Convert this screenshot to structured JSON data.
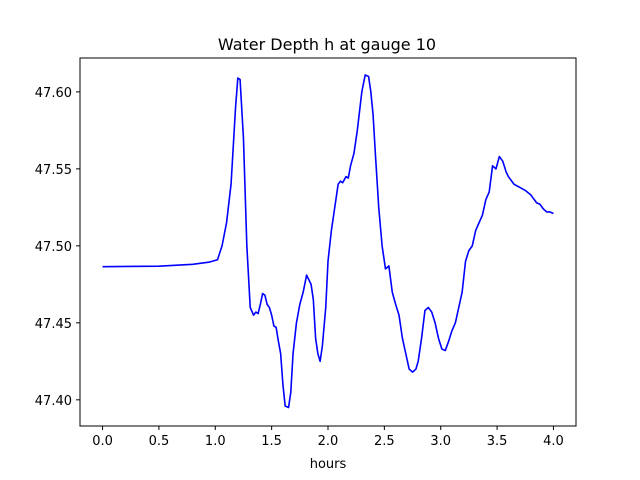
{
  "chart_data": {
    "type": "line",
    "title": "Water Depth h at gauge 10",
    "xlabel": "hours",
    "ylabel": "",
    "xlim": [
      -0.2,
      4.2
    ],
    "ylim": [
      47.383,
      47.622
    ],
    "xticks": [
      0.0,
      0.5,
      1.0,
      1.5,
      2.0,
      2.5,
      3.0,
      3.5,
      4.0
    ],
    "xtick_labels": [
      "0.0",
      "0.5",
      "1.0",
      "1.5",
      "2.0",
      "2.5",
      "3.0",
      "3.5",
      "4.0"
    ],
    "yticks": [
      47.4,
      47.45,
      47.5,
      47.55,
      47.6
    ],
    "ytick_labels": [
      "47.40",
      "47.45",
      "47.50",
      "47.55",
      "47.60"
    ],
    "grid": false,
    "series": [
      {
        "color": "#0000ff",
        "x": [
          0.0,
          0.5,
          0.8,
          0.95,
          1.02,
          1.06,
          1.1,
          1.14,
          1.18,
          1.2,
          1.22,
          1.25,
          1.28,
          1.31,
          1.34,
          1.36,
          1.38,
          1.4,
          1.42,
          1.44,
          1.46,
          1.48,
          1.5,
          1.52,
          1.54,
          1.56,
          1.58,
          1.6,
          1.62,
          1.65,
          1.67,
          1.69,
          1.72,
          1.75,
          1.78,
          1.81,
          1.83,
          1.85,
          1.87,
          1.89,
          1.91,
          1.93,
          1.95,
          1.98,
          2.0,
          2.03,
          2.06,
          2.09,
          2.11,
          2.13,
          2.16,
          2.18,
          2.2,
          2.23,
          2.26,
          2.3,
          2.33,
          2.36,
          2.38,
          2.4,
          2.42,
          2.45,
          2.48,
          2.51,
          2.54,
          2.57,
          2.6,
          2.63,
          2.66,
          2.69,
          2.72,
          2.75,
          2.78,
          2.8,
          2.83,
          2.86,
          2.89,
          2.92,
          2.95,
          2.98,
          3.01,
          3.04,
          3.07,
          3.1,
          3.13,
          3.16,
          3.19,
          3.22,
          3.25,
          3.28,
          3.31,
          3.34,
          3.37,
          3.4,
          3.43,
          3.46,
          3.49,
          3.52,
          3.55,
          3.58,
          3.6,
          3.62,
          3.65,
          3.7,
          3.75,
          3.8,
          3.85,
          3.88,
          3.91,
          3.94,
          3.97,
          4.0
        ],
        "y": [
          47.4865,
          47.4868,
          47.488,
          47.4895,
          47.491,
          47.5,
          47.515,
          47.54,
          47.59,
          47.609,
          47.608,
          47.57,
          47.5,
          47.46,
          47.455,
          47.457,
          47.456,
          47.462,
          47.469,
          47.468,
          47.462,
          47.46,
          47.455,
          47.448,
          47.447,
          47.438,
          47.43,
          47.41,
          47.396,
          47.395,
          47.405,
          47.43,
          47.45,
          47.462,
          47.47,
          47.481,
          47.478,
          47.475,
          47.465,
          47.44,
          47.43,
          47.425,
          47.435,
          47.46,
          47.49,
          47.51,
          47.525,
          47.54,
          47.542,
          47.541,
          47.545,
          47.544,
          47.552,
          47.56,
          47.575,
          47.6,
          47.611,
          47.61,
          47.6,
          47.585,
          47.56,
          47.525,
          47.5,
          47.485,
          47.487,
          47.47,
          47.462,
          47.455,
          47.44,
          47.43,
          47.42,
          47.418,
          47.42,
          47.425,
          47.44,
          47.458,
          47.46,
          47.457,
          47.45,
          47.44,
          47.433,
          47.432,
          47.438,
          47.445,
          47.45,
          47.46,
          47.47,
          47.49,
          47.497,
          47.5,
          47.51,
          47.515,
          47.52,
          47.53,
          47.535,
          47.552,
          47.55,
          47.558,
          47.555,
          47.548,
          47.545,
          47.543,
          47.54,
          47.538,
          47.536,
          47.533,
          47.528,
          47.527,
          47.524,
          47.522,
          47.522,
          47.521
        ]
      }
    ]
  }
}
